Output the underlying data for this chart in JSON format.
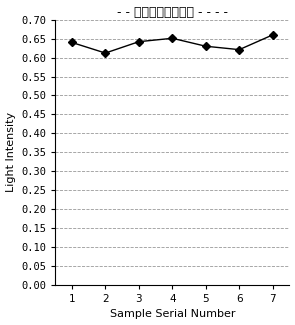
{
  "x": [
    1,
    2,
    3,
    4,
    5,
    6,
    7
  ],
  "y": [
    0.64,
    0.612,
    0.642,
    0.651,
    0.63,
    0.621,
    0.66
  ],
  "title": "- - 常规光路荧光强度 - - - -",
  "xlabel": "Sample Serial Number",
  "ylabel": "Light Intensity",
  "ylim": [
    0.0,
    0.7
  ],
  "yticks": [
    0.0,
    0.05,
    0.1,
    0.15,
    0.2,
    0.25,
    0.3,
    0.35,
    0.4,
    0.45,
    0.5,
    0.55,
    0.6,
    0.65,
    0.7
  ],
  "xticks": [
    1,
    2,
    3,
    4,
    5,
    6,
    7
  ],
  "line_color": "#000000",
  "marker": "D",
  "marker_size": 4,
  "marker_facecolor": "#000000",
  "grid_linestyle": "--",
  "grid_color": "#999999",
  "background_color": "#ffffff",
  "title_fontsize": 9,
  "axis_label_fontsize": 8,
  "tick_fontsize": 7.5
}
